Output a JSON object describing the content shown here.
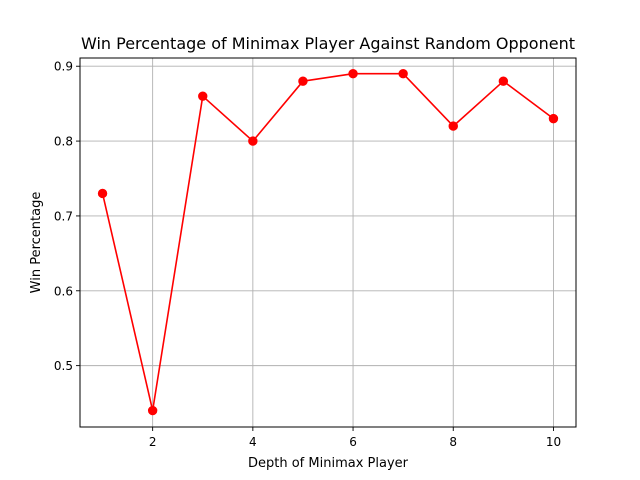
{
  "chart_data": {
    "type": "line",
    "title": "Win Percentage of Minimax Player Against Random Opponent",
    "xlabel": "Depth of Minimax Player",
    "ylabel": "Win Percentage",
    "xlim": [
      0.55,
      10.45
    ],
    "ylim": [
      0.418,
      0.911
    ],
    "xticks": [
      2,
      4,
      6,
      8,
      10
    ],
    "yticks": [
      0.5,
      0.6,
      0.7,
      0.8,
      0.9
    ],
    "xtick_labels": [
      "2",
      "4",
      "6",
      "8",
      "10"
    ],
    "ytick_labels": [
      "0.5",
      "0.6",
      "0.7",
      "0.8",
      "0.9"
    ],
    "grid": true,
    "series": [
      {
        "color": "#ff0000",
        "marker": "circle",
        "x": [
          1,
          2,
          3,
          4,
          5,
          6,
          7,
          8,
          9,
          10
        ],
        "y": [
          0.73,
          0.44,
          0.86,
          0.8,
          0.88,
          0.89,
          0.89,
          0.82,
          0.88,
          0.83
        ]
      }
    ]
  }
}
